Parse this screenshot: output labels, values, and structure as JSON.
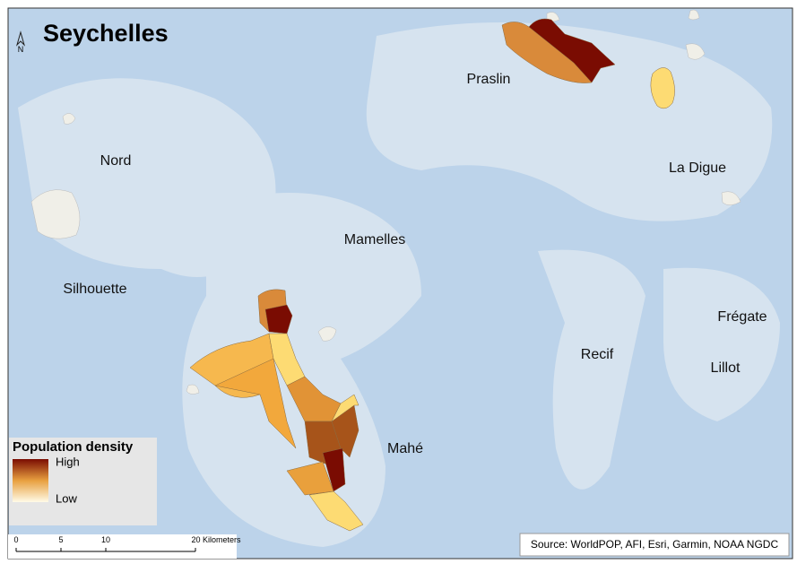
{
  "title": "Seychelles",
  "north": "N",
  "places": [
    "Praslin",
    "Nord",
    "La Digue",
    "Mamelles",
    "Silhouette",
    "Frégate",
    "Recif",
    "Lillot",
    "Mahé"
  ],
  "legend": {
    "title": "Population density",
    "high": "High",
    "low": "Low"
  },
  "scale_bar": {
    "labels": [
      "0",
      "5",
      "10",
      "20 Kilometers"
    ]
  },
  "source": "Source: WorldPOP, AFI, Esri, Garmin, NOAA NGDC"
}
